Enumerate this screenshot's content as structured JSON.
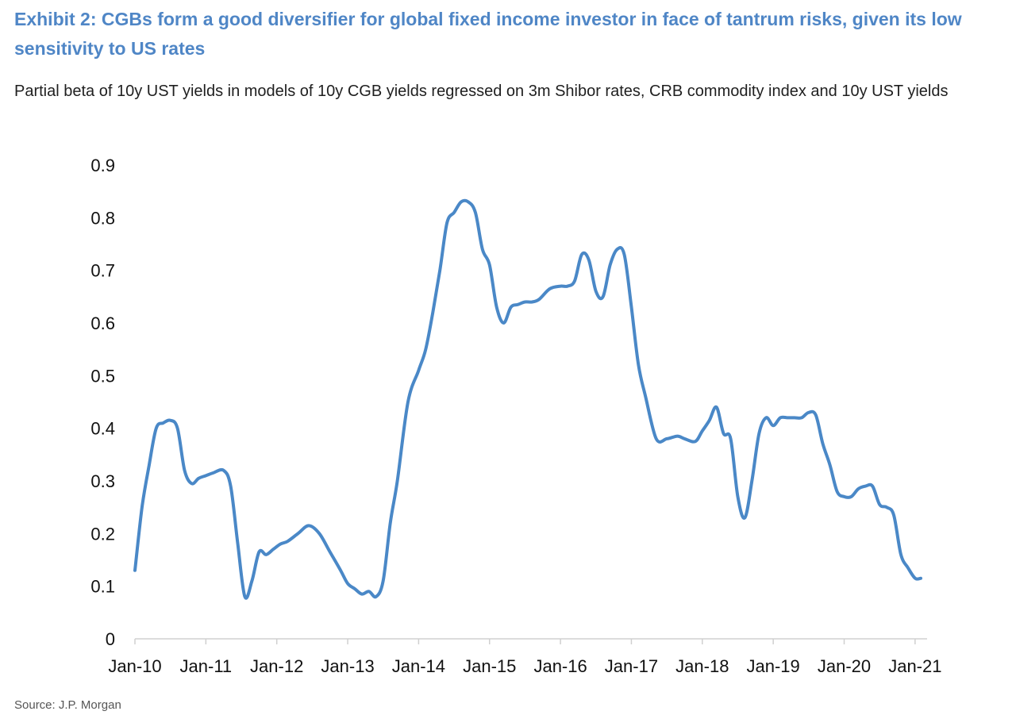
{
  "title": "Exhibit 2: CGBs form a good diversifier for global fixed income investor in face of tantrum risks, given its low sensitivity to US rates",
  "subtitle": "Partial beta of 10y UST yields in models of 10y CGB yields regressed on 3m Shibor rates, CRB commodity index and 10y UST yields",
  "source": "Source: J.P. Morgan",
  "colors": {
    "title": "#4f86c6",
    "line": "#4a88c7",
    "axis": "#d0d0d0"
  },
  "chart_data": {
    "type": "line",
    "title": "",
    "xlabel": "",
    "ylabel": "",
    "ylim": [
      0,
      0.9
    ],
    "xlim": [
      2010.0,
      2021.08
    ],
    "y_ticks": [
      "0",
      "0.1",
      "0.2",
      "0.3",
      "0.4",
      "0.5",
      "0.6",
      "0.7",
      "0.8",
      "0.9"
    ],
    "x_ticks": [
      "Jan-10",
      "Jan-11",
      "Jan-12",
      "Jan-13",
      "Jan-14",
      "Jan-15",
      "Jan-16",
      "Jan-17",
      "Jan-18",
      "Jan-19",
      "Jan-20",
      "Jan-21"
    ],
    "legend": "none",
    "grid": false,
    "series": [
      {
        "x": [
          2010.0,
          2010.1,
          2010.2,
          2010.3,
          2010.4,
          2010.5,
          2010.6,
          2010.7,
          2010.8,
          2010.9,
          2011.0,
          2011.1,
          2011.25,
          2011.35,
          2011.45,
          2011.55,
          2011.65,
          2011.75,
          2011.85,
          2011.95,
          2012.05,
          2012.15,
          2012.3,
          2012.45,
          2012.6,
          2012.75,
          2012.9,
          2013.0,
          2013.1,
          2013.2,
          2013.3,
          2013.4,
          2013.5,
          2013.6,
          2013.7,
          2013.85,
          2014.0,
          2014.1,
          2014.2,
          2014.3,
          2014.4,
          2014.5,
          2014.6,
          2014.7,
          2014.8,
          2014.9,
          2015.0,
          2015.1,
          2015.2,
          2015.3,
          2015.4,
          2015.5,
          2015.6,
          2015.7,
          2015.85,
          2016.0,
          2016.1,
          2016.2,
          2016.3,
          2016.4,
          2016.5,
          2016.6,
          2016.7,
          2016.8,
          2016.9,
          2017.0,
          2017.1,
          2017.2,
          2017.35,
          2017.5,
          2017.65,
          2017.75,
          2017.9,
          2018.0,
          2018.1,
          2018.2,
          2018.3,
          2018.4,
          2018.5,
          2018.6,
          2018.7,
          2018.8,
          2018.9,
          2019.0,
          2019.1,
          2019.2,
          2019.3,
          2019.4,
          2019.5,
          2019.6,
          2019.7,
          2019.8,
          2019.9,
          2020.0,
          2020.1,
          2020.2,
          2020.3,
          2020.4,
          2020.5,
          2020.6,
          2020.7,
          2020.8,
          2020.9,
          2021.0,
          2021.08
        ],
        "values": [
          0.13,
          0.25,
          0.33,
          0.4,
          0.41,
          0.415,
          0.4,
          0.32,
          0.295,
          0.305,
          0.31,
          0.315,
          0.32,
          0.29,
          0.18,
          0.08,
          0.11,
          0.165,
          0.16,
          0.17,
          0.18,
          0.185,
          0.2,
          0.215,
          0.2,
          0.165,
          0.13,
          0.105,
          0.095,
          0.085,
          0.09,
          0.08,
          0.11,
          0.22,
          0.3,
          0.45,
          0.51,
          0.55,
          0.62,
          0.7,
          0.79,
          0.81,
          0.83,
          0.83,
          0.81,
          0.74,
          0.71,
          0.63,
          0.6,
          0.63,
          0.635,
          0.64,
          0.64,
          0.645,
          0.665,
          0.67,
          0.67,
          0.68,
          0.73,
          0.72,
          0.66,
          0.65,
          0.71,
          0.74,
          0.73,
          0.63,
          0.52,
          0.46,
          0.38,
          0.38,
          0.385,
          0.38,
          0.375,
          0.395,
          0.415,
          0.44,
          0.39,
          0.38,
          0.27,
          0.23,
          0.3,
          0.39,
          0.42,
          0.405,
          0.42,
          0.42,
          0.42,
          0.42,
          0.43,
          0.425,
          0.37,
          0.33,
          0.28,
          0.27,
          0.27,
          0.285,
          0.29,
          0.29,
          0.255,
          0.25,
          0.235,
          0.16,
          0.135,
          0.115,
          0.115
        ]
      }
    ]
  }
}
